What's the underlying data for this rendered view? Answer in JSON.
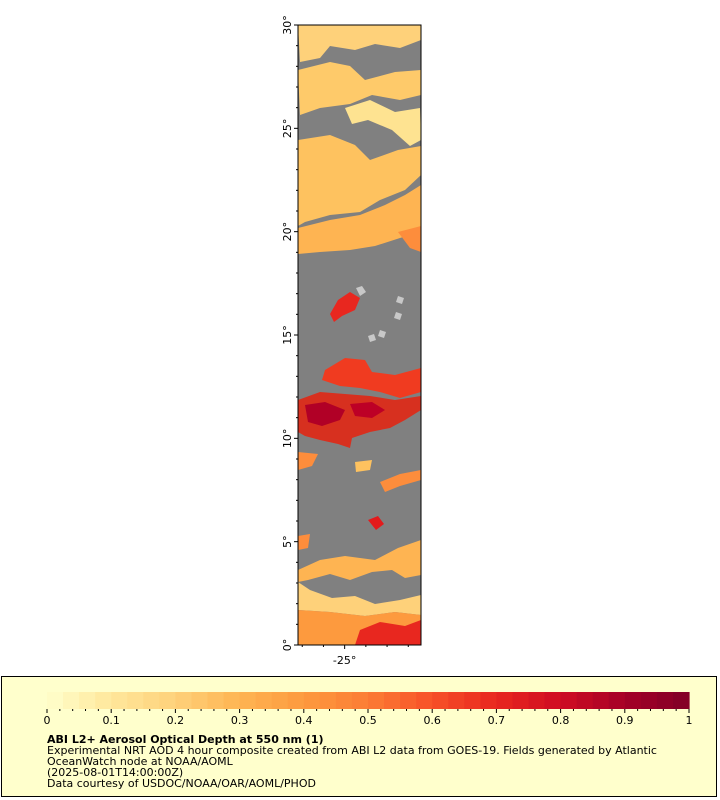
{
  "map": {
    "lat_ticks": [
      "0°",
      "5°",
      "10°",
      "15°",
      "20°",
      "25°",
      "30°"
    ],
    "lon_ticks": [
      "-25°"
    ],
    "lat_range": [
      0,
      30
    ],
    "lon_range": [
      -27.2,
      -21.4
    ],
    "land_color": "#808080",
    "coast_color": "#c8c8c8"
  },
  "colorbar": {
    "ticks": [
      "0",
      "0.1",
      "0.2",
      "0.3",
      "0.4",
      "0.5",
      "0.6",
      "0.7",
      "0.8",
      "0.9",
      "1"
    ],
    "range": [
      0,
      1
    ],
    "colors": [
      "#ffffcc",
      "#ffe79b",
      "#fed17a",
      "#feb452",
      "#fd9a3e",
      "#fc7c35",
      "#f75128",
      "#e8271f",
      "#cf0c22",
      "#a50026",
      "#800026"
    ]
  },
  "info": {
    "title": "ABI L2+ Aerosol Optical Depth at 550 nm (1)",
    "description": "Experimental NRT AOD 4 hour composite created from ABI L2 data from GOES-19. Fields generated by Atlantic OceanWatch node at NOAA/AOML",
    "time": "(2025-08-01T14:00:00Z)",
    "credit": "Data courtesy of USDOC/NOAA/OAR/AOML/PHOD"
  }
}
